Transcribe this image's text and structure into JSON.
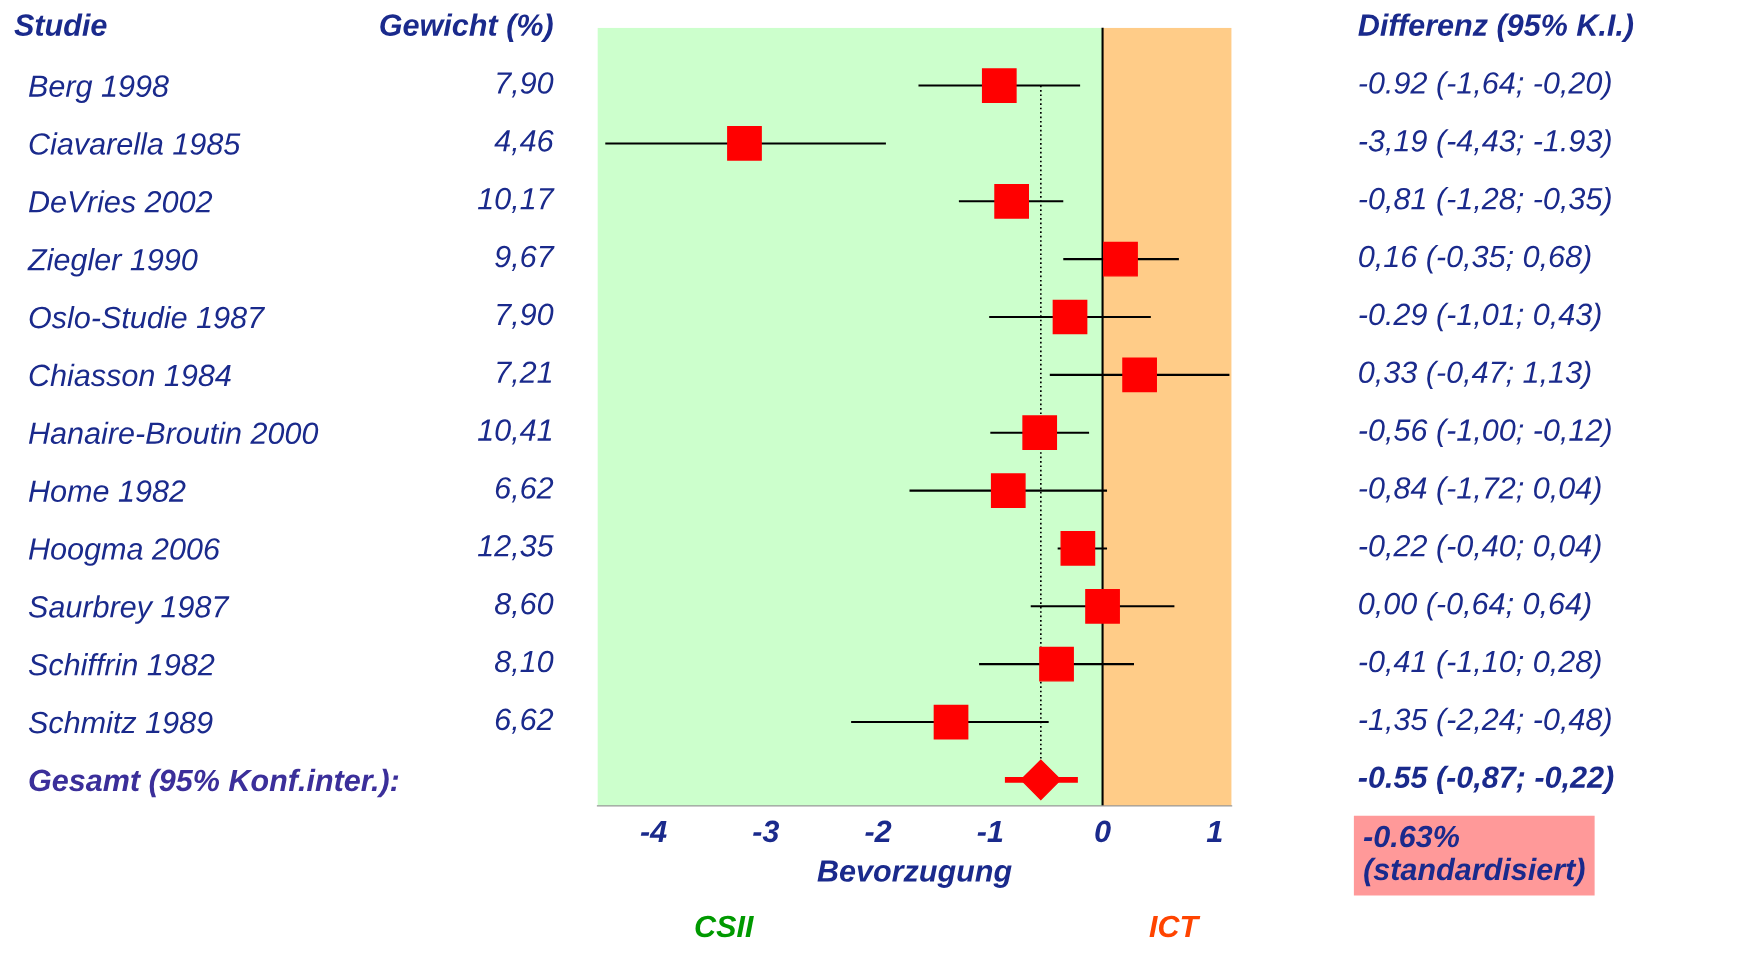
{
  "chart_data": {
    "type": "scatter",
    "orientation": "horizontal",
    "xlabel": "Bevorzugung",
    "categories": [
      "Berg 1998",
      "Ciavarella 1985",
      "DeVries 2002",
      "Ziegler 1990",
      "Oslo-Studie 1987",
      "Chiasson 1984",
      "Hanaire-Broutin 2000",
      "Home 1982",
      "Hoogma 2006",
      "Saurbrey 1987",
      "Schiffrin 1982",
      "Schmitz 1989",
      "Gesamt (95% Konf.inter.)"
    ],
    "series": [
      {
        "type": "scatter",
        "marker": "square",
        "color": "#ff0000",
        "values": [
          -0.92,
          -3.19,
          -0.81,
          0.16,
          -0.29,
          0.33,
          -0.56,
          -0.84,
          -0.22,
          0.0,
          -0.41,
          -1.35,
          null
        ],
        "errors": [
          [
            -1.64,
            -0.2
          ],
          [
            -4.43,
            -1.93
          ],
          [
            -1.28,
            -0.35
          ],
          [
            -0.35,
            0.68
          ],
          [
            -1.01,
            0.43
          ],
          [
            -0.47,
            1.13
          ],
          [
            -1.0,
            -0.12
          ],
          [
            -1.72,
            0.04
          ],
          [
            -0.4,
            0.04
          ],
          [
            -0.64,
            0.64
          ],
          [
            -1.1,
            0.28
          ],
          [
            -2.24,
            -0.48
          ],
          null
        ],
        "value_labels": [
          "-0.92 (-1,64; -0,20)",
          "-3,19 (-4,43; -1.93)",
          "-0,81 (-1,28; -0,35)",
          "0,16 (-0,35; 0,68)",
          "-0.29 (-1,01; 0,43)",
          "0,33 (-0,47; 1,13)",
          "-0,56 (-1,00; -0,12)",
          "-0,84 (-1,72; 0,04)",
          "-0,22 (-0,40; 0,04)",
          "0,00 (-0,64; 0,64)",
          "-0,41 (-1,10; 0,28)",
          "-1,35 (-2,24; -0,48)",
          null
        ]
      },
      {
        "type": "scatter",
        "marker": "diamond",
        "color": "#ff0000",
        "values": [
          null,
          null,
          null,
          null,
          null,
          null,
          null,
          null,
          null,
          null,
          null,
          null,
          -0.55
        ],
        "errors": [
          null,
          null,
          null,
          null,
          null,
          null,
          null,
          null,
          null,
          null,
          null,
          null,
          [
            -0.87,
            -0.22
          ]
        ]
      }
    ],
    "xlim": [
      -4.5,
      1.15
    ],
    "xticks": [
      -4,
      -3,
      -2,
      -1,
      0,
      1
    ],
    "grid": false,
    "legend": false,
    "bands": [
      {
        "axis": "x",
        "from": -4.5,
        "to": 0,
        "color": "#ccffcc"
      },
      {
        "axis": "x",
        "from": 0,
        "to": 1.15,
        "color": "#ffcc88"
      }
    ],
    "ref_lines": [
      {
        "axis": "x",
        "value": 0,
        "color": "#000000",
        "line_style": "solid"
      },
      {
        "axis": "x",
        "value": -0.55,
        "color": "#000000",
        "line_style": "dotted"
      }
    ],
    "annotations": [
      "Studie",
      "Gewicht (%)",
      "Differenz (95% K.I.)",
      "-0.63%\n(standardisiert)",
      ":",
      "CSII",
      "ICT",
      "-0.55 (-0,87; -0,22)",
      "7,90",
      "4,46",
      "10,17",
      "9,67",
      "7,90",
      "7,21",
      "10,41",
      "6,62",
      "12,35",
      "8,60",
      "8,10",
      "6,62"
    ]
  }
}
